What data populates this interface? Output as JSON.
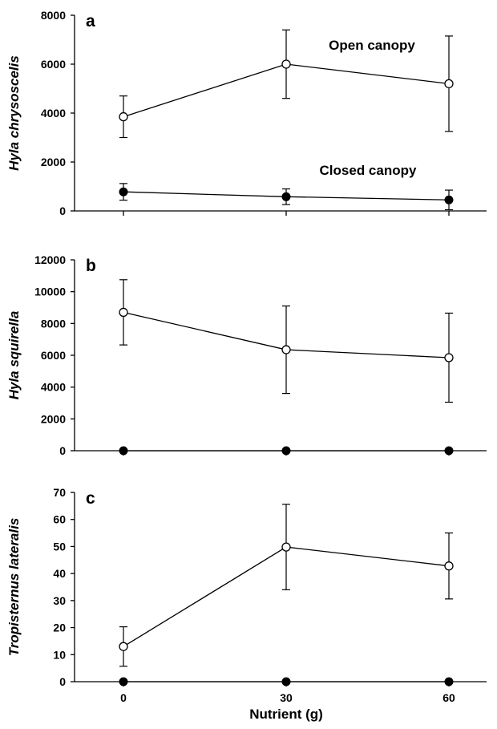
{
  "chart_data": [
    {
      "type": "line",
      "panel_label": "a",
      "x": [
        0,
        30,
        60
      ],
      "ylabel": "Hyla chrysoscelis",
      "ylim": [
        0,
        8000
      ],
      "yticks": [
        0,
        2000,
        4000,
        6000,
        8000
      ],
      "annotations": [
        "Open canopy",
        "Closed canopy"
      ],
      "series": [
        {
          "marker": "open-circle",
          "values": [
            3850,
            6000,
            5200
          ],
          "errors": [
            850,
            1400,
            1950
          ]
        },
        {
          "marker": "filled-circle",
          "values": [
            780,
            580,
            450
          ],
          "errors": [
            340,
            320,
            400
          ]
        }
      ]
    },
    {
      "type": "line",
      "panel_label": "b",
      "x": [
        0,
        30,
        60
      ],
      "ylabel": "Hyla squirella",
      "ylim": [
        0,
        12000
      ],
      "yticks": [
        0,
        2000,
        4000,
        6000,
        8000,
        10000,
        12000
      ],
      "series": [
        {
          "marker": "open-circle",
          "values": [
            8700,
            6350,
            5850
          ],
          "errors": [
            2050,
            2750,
            2800
          ]
        },
        {
          "marker": "filled-circle",
          "values": [
            0,
            0,
            0
          ],
          "errors": [
            0,
            0,
            0
          ]
        }
      ]
    },
    {
      "type": "line",
      "panel_label": "c",
      "x": [
        0,
        30,
        60
      ],
      "xlabel": "Nutrient (g)",
      "xticks": [
        "0",
        "30",
        "60"
      ],
      "ylabel": "Tropisternus lateralis",
      "ylim": [
        0,
        70
      ],
      "yticks": [
        0,
        10,
        20,
        30,
        40,
        50,
        60,
        70
      ],
      "series": [
        {
          "marker": "open-circle",
          "values": [
            13,
            49.8,
            42.8
          ],
          "errors": [
            7.3,
            15.8,
            12.2
          ]
        },
        {
          "marker": "filled-circle",
          "values": [
            0,
            0,
            0
          ],
          "errors": [
            0,
            0,
            0
          ]
        }
      ]
    }
  ]
}
